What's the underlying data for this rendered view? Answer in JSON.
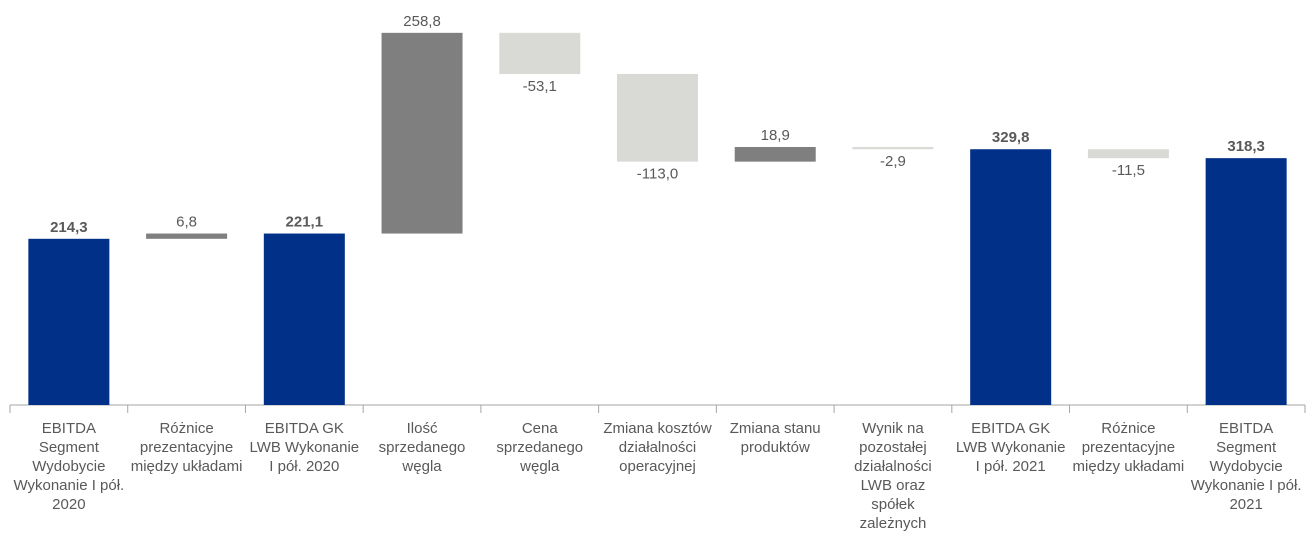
{
  "chart_data": {
    "type": "waterfall",
    "categories": [
      "EBITDA Segment Wydobycie Wykonanie I pół. 2020",
      "Różnice prezentacyjne między układami",
      "EBITDA GK LWB Wykonanie I pół. 2020",
      "Ilość sprzedanego węgla",
      "Cena sprzedanego węgla",
      "Zmiana kosztów działalności operacyjnej",
      "Zmiana stanu produktów",
      "Wynik na pozostałej działalności LWB oraz spółek zależnych",
      "EBITDA GK LWB Wykonanie I pół. 2021",
      "Różnice prezentacyjne między układami",
      "EBITDA Segment Wydobycie Wykonanie I pół. 2021"
    ],
    "values": [
      214.3,
      6.8,
      221.1,
      258.8,
      -53.1,
      -113.0,
      18.9,
      -2.9,
      329.8,
      -11.5,
      318.3
    ],
    "value_labels": [
      "214,3",
      "6,8",
      "221,1",
      "258,8",
      "-53,1",
      "-113,0",
      "18,9",
      "-2,9",
      "329,8",
      "-11,5",
      "318,3"
    ],
    "total": [
      true,
      false,
      true,
      false,
      false,
      false,
      false,
      false,
      true,
      false,
      true
    ],
    "colors": {
      "total": "#003087",
      "increase": "#7f7f7f",
      "decrease": "#d9d9d6"
    },
    "ylim": [
      0,
      490
    ]
  }
}
